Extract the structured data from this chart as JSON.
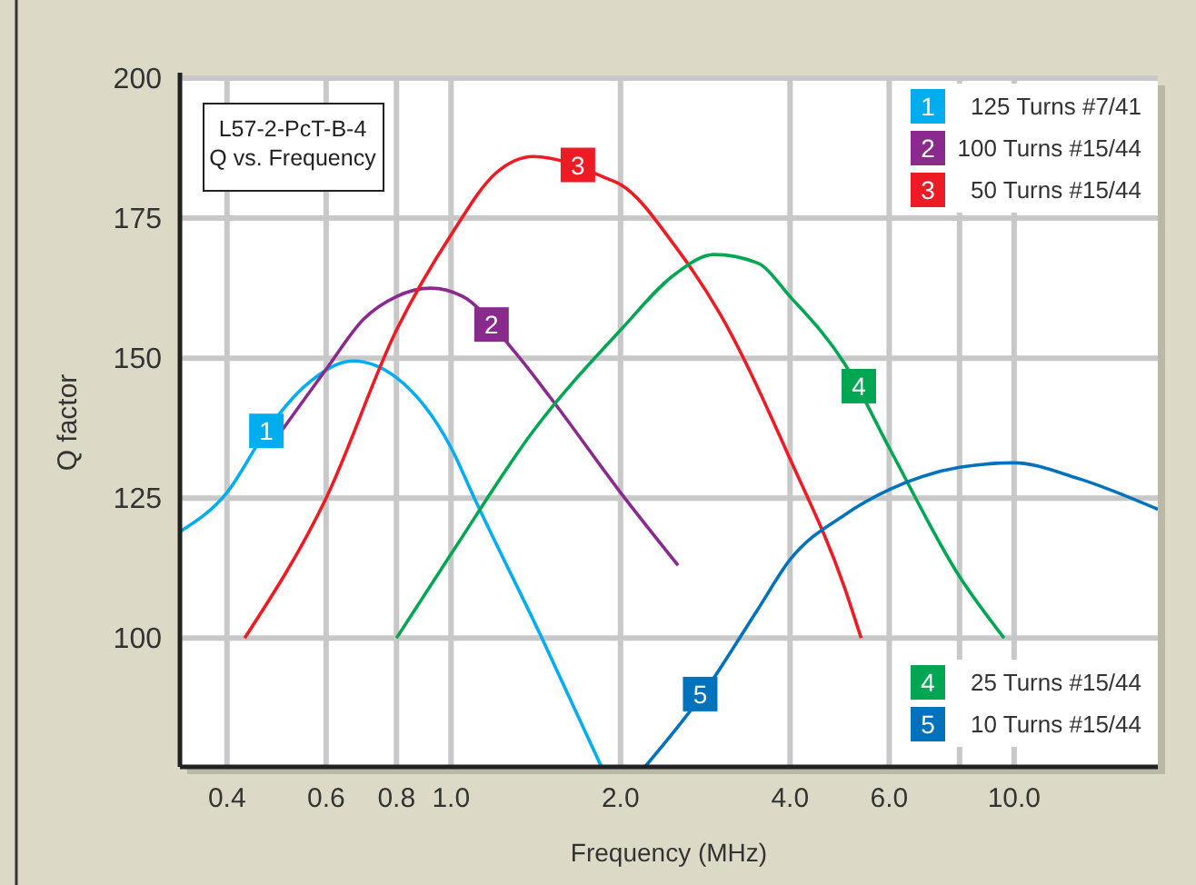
{
  "chart_data": {
    "type": "line",
    "title": "L57-2-PcT-B-4\nQ vs. Frequency",
    "xlabel": "Frequency (MHz)",
    "ylabel": "Q factor",
    "log": "x",
    "grid": true,
    "legend": "right",
    "marker": "none",
    "line_style": "solid",
    "xlim": [
      0.33,
      18
    ],
    "xticks": [
      {
        "value": 0.4,
        "label": "0.4"
      },
      {
        "value": 0.6,
        "label": "0.6"
      },
      {
        "value": 0.8,
        "label": "0.8"
      },
      {
        "value": 1,
        "label": "1.0"
      },
      {
        "value": 2,
        "label": "2.0"
      },
      {
        "value": 4,
        "label": "4.0"
      },
      {
        "value": 6,
        "label": "6.0"
      },
      {
        "value": 8,
        "label": null
      },
      {
        "value": 10,
        "label": "10.0"
      }
    ],
    "ylim": [
      77,
      200
    ],
    "yticks": [
      100,
      125,
      150,
      175,
      200
    ],
    "series": [
      {
        "name": "125 Turns #7/41",
        "color": "#00aeef",
        "x": [
          0.33,
          0.4,
          0.47,
          0.55,
          0.67,
          0.8,
          1.0,
          1.1,
          1.45,
          1.85
        ],
        "values": [
          119,
          126,
          137,
          145,
          149.5,
          146.5,
          134,
          125,
          100,
          77
        ]
      },
      {
        "name": "100 Turns #15/44",
        "color": "#8b2a8e",
        "x": [
          0.5,
          0.6,
          0.7,
          0.8,
          0.92,
          1.05,
          1.3,
          1.5,
          2,
          2.53
        ],
        "values": [
          137,
          148,
          157,
          161,
          162.5,
          161,
          151,
          143,
          126,
          113
        ]
      },
      {
        "name": "50 Turns #15/44",
        "color": "#ed1c24",
        "x": [
          0.43,
          0.6,
          0.8,
          1.0,
          1.2,
          1.4,
          1.9,
          2,
          2.5,
          3,
          4,
          5,
          5.35
        ],
        "values": [
          100,
          125,
          155,
          172,
          183,
          186,
          182,
          181,
          170,
          158,
          132,
          109,
          100
        ]
      },
      {
        "name": "25 Turns #15/44",
        "color": "#00a651",
        "x": [
          0.8,
          1.0,
          1.4,
          2,
          2.5,
          2.93,
          3.5,
          4,
          5,
          6,
          8,
          9.6
        ],
        "values": [
          100,
          115,
          137,
          155,
          165,
          168.5,
          167,
          161,
          149,
          134,
          111,
          100
        ]
      },
      {
        "name": "10 Turns #15/44",
        "color": "#0072bc",
        "x": [
          2.21,
          2.8,
          3.5,
          4,
          5,
          6,
          8,
          10,
          13,
          18
        ],
        "values": [
          77,
          90,
          105,
          114,
          122,
          126.5,
          130.5,
          131.3,
          128.5,
          123
        ]
      }
    ],
    "annotations": [
      {
        "text": "1",
        "x": 0.47,
        "y": 137
      },
      {
        "text": "2",
        "x": 1.18,
        "y": 156
      },
      {
        "text": "3",
        "x": 1.68,
        "y": 184.5
      },
      {
        "text": "4",
        "x": 5.3,
        "y": 145
      },
      {
        "text": "5",
        "x": 2.77,
        "y": 90
      }
    ]
  }
}
